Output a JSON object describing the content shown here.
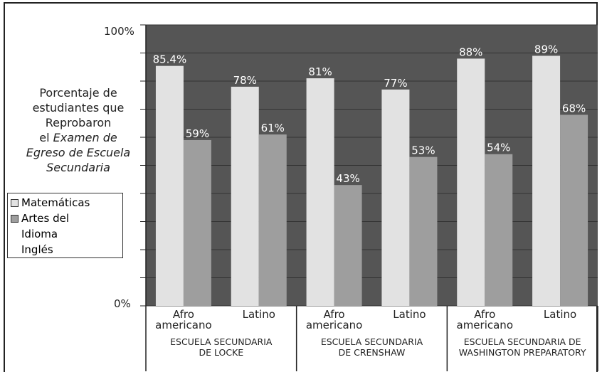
{
  "ylabel": {
    "line1": "Porcentaje de",
    "line2": "estudiantes que",
    "line3": "Reprobaron",
    "line4_prefix": "el ",
    "line4_em": "Examen de",
    "line5": "Egreso de Escuela",
    "line6": "Secundaria"
  },
  "y_ticks": {
    "top": "100%",
    "bottom": "0%"
  },
  "legend": {
    "math": "Matemáticas",
    "lang_line1": "Artes del",
    "lang_line2": "Idioma",
    "lang_line3": "Inglés"
  },
  "colors": {
    "plot_bg": "#555555",
    "math": "#e2e2e2",
    "lang": "#9e9e9e",
    "gridline": "#333333"
  },
  "chart_data": {
    "type": "bar",
    "ylim": [
      0,
      100
    ],
    "y_unit": "%",
    "groups": [
      "ESCUELA SECUNDARIA DE LOCKE",
      "ESCUELA SECUNDARIA DE CRENSHAW",
      "ESCUELA SECUNDARIA DE WASHINGTON PREPARATORY"
    ],
    "group_label_lines": [
      [
        "ESCUELA SECUNDARIA",
        "DE LOCKE"
      ],
      [
        "ESCUELA SECUNDARIA",
        "DE CRENSHAW"
      ],
      [
        "ESCUELA SECUNDARIA DE",
        "WASHINGTON PREPARATORY"
      ]
    ],
    "categories": [
      [
        "Afro",
        "americano"
      ],
      [
        "Latino"
      ],
      [
        "Afro",
        "americano"
      ],
      [
        "Latino"
      ],
      [
        "Afro",
        "americano"
      ],
      [
        "Latino"
      ]
    ],
    "series": [
      {
        "name": "Matemáticas",
        "values": [
          85.4,
          78,
          81,
          77,
          88,
          89
        ],
        "labels": [
          "85.4%",
          "78%",
          "81%",
          "77%",
          "88%",
          "89%"
        ]
      },
      {
        "name": "Artes del Idioma Inglés",
        "values": [
          59,
          61,
          43,
          53,
          54,
          68
        ],
        "labels": [
          "59%",
          "61%",
          "43%",
          "53%",
          "54%",
          "68%"
        ]
      }
    ]
  }
}
